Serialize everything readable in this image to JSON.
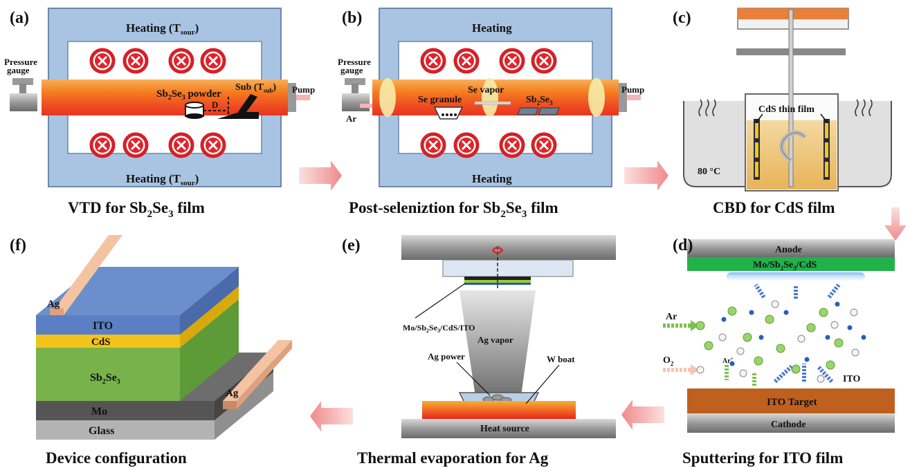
{
  "panels": {
    "a": {
      "letter": "(a)",
      "heating_top": "Heating (T",
      "heating_top_sub": "sour",
      "heating_top_end": ")",
      "pressure": "Pressure",
      "gauge": "gauge",
      "pump": "Pump",
      "powder_pre": "Sb",
      "powder_s1": "2",
      "powder_mid": "Se",
      "powder_s2": "3",
      "powder_post": " powder",
      "sub_pre": "Sub (T",
      "sub_sub": "sub",
      "sub_post": ")",
      "dist": "D",
      "heating_bottom": "Heating (T",
      "heating_bottom_sub": "sour",
      "heating_bottom_end": ")",
      "caption_pre": "VTD for Sb",
      "caption_s1": "2",
      "caption_mid": "Se",
      "caption_s2": "3",
      "caption_post": " film"
    },
    "b": {
      "letter": "(b)",
      "heating_top": "Heating",
      "pressure": "Pressure",
      "gauge": "gauge",
      "pump": "Pump",
      "ar": "Ar",
      "se_granule": "Se granule",
      "se_vapor": "Se vapor",
      "sb_pre": "Sb",
      "sb_s1": "2",
      "sb_mid": "Se",
      "sb_s2": "3",
      "heating_bottom": "Heating",
      "caption_pre": "Post-seleniztion for Sb",
      "caption_s1": "2",
      "caption_mid": "Se",
      "caption_s2": "3",
      "caption_post": " film"
    },
    "c": {
      "letter": "(c)",
      "cds": "CdS thin film",
      "temp": "80 °C",
      "caption": "CBD for CdS film"
    },
    "d": {
      "letter": "(d)",
      "anode": "Anode",
      "sub_pre": "Mo/Sb",
      "sub_s1": "2",
      "sub_mid": "Se",
      "sub_s2": "3",
      "sub_post": "/CdS",
      "ar": "Ar",
      "o2_pre": "O",
      "o2_s": "2",
      "arplus": "Ar",
      "arplus_sup": "+",
      "ito": "ITO",
      "target": "ITO Target",
      "cathode": "Cathode",
      "caption": "Sputtering for ITO film"
    },
    "e": {
      "letter": "(e)",
      "sub_pre": "Mo/Sb",
      "sub_s1": "2",
      "sub_mid": "Se",
      "sub_s2": "3",
      "sub_post": "/CdS/ITO",
      "vapor": "Ag vapor",
      "power": "Ag power",
      "boat": "W boat",
      "heat": "Heat source",
      "caption": "Thermal evaporation for Ag"
    },
    "f": {
      "letter": "(f)",
      "ag1": "Ag",
      "ito": "ITO",
      "cds": "CdS",
      "sb_pre": "Sb",
      "sb_s1": "2",
      "sb_mid": "Se",
      "sb_s2": "3",
      "ag2": "Ag",
      "mo": "Mo",
      "glass": "Glass",
      "caption": "Device configuration"
    }
  },
  "colors": {
    "furnace_frame": "#a9c4e2",
    "furnace_edge": "#6b87aa",
    "tube": "#f07a1e",
    "coil": "#e0242a",
    "anode": "#8c8c8c",
    "substrate_green": "#21b24a",
    "target": "#c0601e",
    "ito_blue": "#5b7fc4",
    "cds_yellow": "#f2c419",
    "sb_green": "#74b54a",
    "arrow": "#f4a0a0"
  }
}
